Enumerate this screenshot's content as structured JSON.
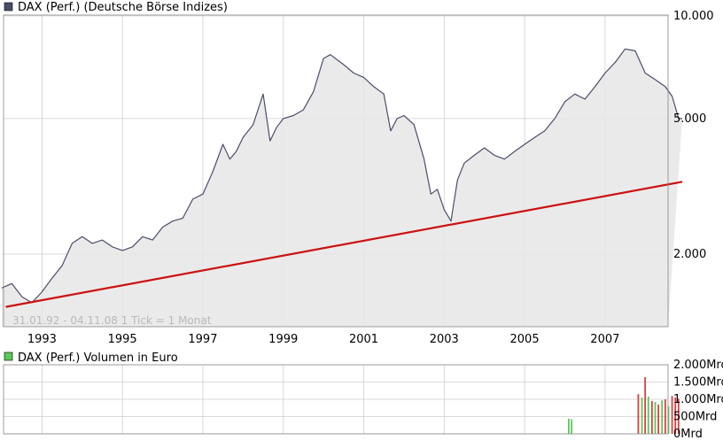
{
  "chart_data": [
    {
      "type": "line",
      "title": "DAX (Perf.) (Deutsche Börse Indizes)",
      "caption": "31.01.92 - 04.11.08   1 Tick = 1 Monat",
      "legend_color": "#4a4e69",
      "line_color": "#4a4e69",
      "trendline_color": "#cc1111",
      "area_color": "#e6e6e6",
      "y_scale": "log",
      "ylim": [
        1200,
        10000
      ],
      "y_ticks": [
        {
          "value": 10000,
          "label": "10.000"
        },
        {
          "value": 5000,
          "label": "5.000"
        },
        {
          "value": 2000,
          "label": "2.000"
        }
      ],
      "xlim": [
        1992.0,
        2008.92
      ],
      "x_ticks": [
        {
          "value": 1993,
          "label": "1993"
        },
        {
          "value": 1995,
          "label": "1995"
        },
        {
          "value": 1997,
          "label": "1997"
        },
        {
          "value": 1999,
          "label": "1999"
        },
        {
          "value": 2001,
          "label": "2001"
        },
        {
          "value": 2003,
          "label": "2003"
        },
        {
          "value": 2005,
          "label": "2005"
        },
        {
          "value": 2007,
          "label": "2007"
        }
      ],
      "grid": true,
      "series": [
        {
          "x": [
            1992.0,
            1992.25,
            1992.5,
            1992.75,
            1993.0,
            1993.25,
            1993.5,
            1993.75,
            1994.0,
            1994.25,
            1994.5,
            1994.75,
            1995.0,
            1995.25,
            1995.5,
            1995.75,
            1996.0,
            1996.25,
            1996.5,
            1996.75,
            1997.0,
            1997.25,
            1997.5,
            1997.67,
            1997.83,
            1998.0,
            1998.25,
            1998.5,
            1998.67,
            1998.83,
            1999.0,
            1999.25,
            1999.5,
            1999.75,
            2000.0,
            2000.17,
            2000.5,
            2000.75,
            2001.0,
            2001.25,
            2001.5,
            2001.67,
            2001.83,
            2002.0,
            2002.25,
            2002.5,
            2002.67,
            2002.83,
            2003.0,
            2003.17,
            2003.33,
            2003.5,
            2003.75,
            2004.0,
            2004.25,
            2004.5,
            2004.75,
            2005.0,
            2005.25,
            2005.5,
            2005.75,
            2006.0,
            2006.25,
            2006.5,
            2006.75,
            2007.0,
            2007.25,
            2007.5,
            2007.75,
            2008.0,
            2008.25,
            2008.5,
            2008.67,
            2008.83,
            2008.92
          ],
          "values": [
            1590,
            1640,
            1500,
            1440,
            1550,
            1700,
            1850,
            2150,
            2250,
            2150,
            2200,
            2100,
            2050,
            2100,
            2250,
            2200,
            2400,
            2500,
            2550,
            2900,
            3000,
            3500,
            4200,
            3800,
            4000,
            4400,
            4800,
            5900,
            4300,
            4700,
            5000,
            5100,
            5300,
            6000,
            7500,
            7700,
            7200,
            6800,
            6600,
            6200,
            5900,
            4600,
            5000,
            5100,
            4800,
            3800,
            3000,
            3100,
            2700,
            2500,
            3300,
            3700,
            3900,
            4100,
            3900,
            3800,
            4000,
            4200,
            4400,
            4600,
            5000,
            5600,
            5900,
            5700,
            6200,
            6800,
            7300,
            8000,
            7900,
            6800,
            6500,
            6200,
            5800,
            5000,
            5000
          ]
        }
      ],
      "trendline": {
        "x": [
          1992.1,
          2008.92
        ],
        "y": [
          1400,
          3260
        ]
      }
    },
    {
      "type": "bar",
      "title": "DAX (Perf.) Volumen in Euro",
      "legend_color": "#5ac85a",
      "ylim": [
        0,
        2000
      ],
      "y_ticks": [
        {
          "value": 2000,
          "label": "2.000Mrd"
        },
        {
          "value": 1500,
          "label": "1.500Mrd"
        },
        {
          "value": 1000,
          "label": "1.000Mrd"
        },
        {
          "value": 500,
          "label": "500Mrd"
        },
        {
          "value": 0,
          "label": "0Mrd"
        }
      ],
      "grid": true,
      "bars": [
        {
          "x": 2006.1,
          "value": 440,
          "color": "#5ac85a"
        },
        {
          "x": 2006.17,
          "value": 420,
          "color": "#5ac85a"
        },
        {
          "x": 2007.83,
          "value": 1150,
          "color": "#d94040"
        },
        {
          "x": 2007.92,
          "value": 1050,
          "color": "#5ac85a"
        },
        {
          "x": 2008.0,
          "value": 1640,
          "color": "#d94040"
        },
        {
          "x": 2008.08,
          "value": 1080,
          "color": "#5ac85a"
        },
        {
          "x": 2008.17,
          "value": 950,
          "color": "#d94040"
        },
        {
          "x": 2008.25,
          "value": 920,
          "color": "#5ac85a"
        },
        {
          "x": 2008.33,
          "value": 850,
          "color": "#d94040"
        },
        {
          "x": 2008.42,
          "value": 970,
          "color": "#5ac85a"
        },
        {
          "x": 2008.5,
          "value": 1000,
          "color": "#d94040"
        },
        {
          "x": 2008.58,
          "value": 800,
          "color": "#5ac85a"
        },
        {
          "x": 2008.67,
          "value": 1100,
          "color": "#d94040"
        },
        {
          "x": 2008.75,
          "value": 1050,
          "color": "#d94040"
        },
        {
          "x": 2008.83,
          "value": 1020,
          "color": "#d94040"
        }
      ]
    }
  ]
}
